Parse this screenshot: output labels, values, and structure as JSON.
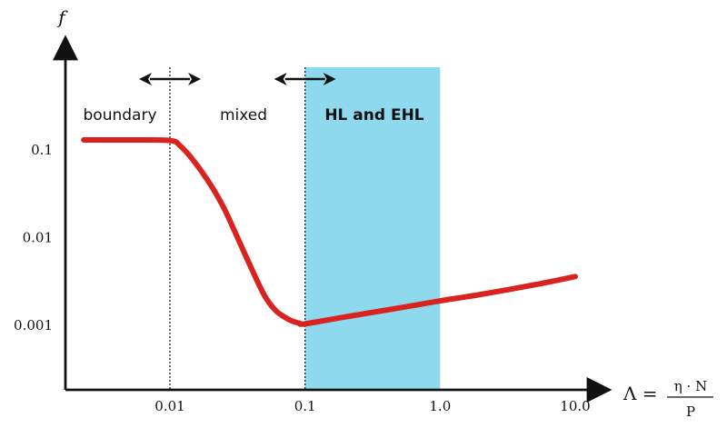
{
  "chart_data": {
    "type": "line",
    "title": "",
    "xlabel": "Λ =",
    "xlabel_fraction": {
      "numerator": "η · N",
      "denominator": "P"
    },
    "ylabel": "f",
    "x_scale": "log",
    "y_scale": "log",
    "xlim": [
      0.002,
      12
    ],
    "ylim": [
      0.0003,
      1.2
    ],
    "x_ticks": [
      {
        "value": 0.01,
        "label": "0.01"
      },
      {
        "value": 0.1,
        "label": "0.1"
      },
      {
        "value": 1.0,
        "label": "1.0"
      },
      {
        "value": 10.0,
        "label": "10.0"
      }
    ],
    "y_ticks": [
      {
        "value": 0.1,
        "label": "0.1"
      },
      {
        "value": 0.01,
        "label": "0.01"
      },
      {
        "value": 0.001,
        "label": "0.001"
      }
    ],
    "series": [
      {
        "color": "#d9231f",
        "x": [
          0.0023,
          0.005,
          0.01,
          0.012,
          0.015,
          0.02,
          0.025,
          0.03,
          0.04,
          0.05,
          0.06,
          0.07,
          0.08,
          0.09,
          0.1,
          0.2,
          0.5,
          1.0,
          2.0,
          5.0,
          10.0
        ],
        "y": [
          0.13,
          0.13,
          0.128,
          0.11,
          0.075,
          0.04,
          0.022,
          0.012,
          0.0045,
          0.0022,
          0.0015,
          0.00125,
          0.00112,
          0.00106,
          0.00104,
          0.00125,
          0.00158,
          0.0019,
          0.00225,
          0.0029,
          0.0036
        ]
      }
    ],
    "boundaries": [
      {
        "x": 0.01,
        "style": "dotted"
      },
      {
        "x": 0.1,
        "style": "dotted"
      }
    ],
    "shaded_region": {
      "x_range": [
        0.1,
        1.0
      ],
      "color": "#8fd9ee",
      "label": "HL and EHL",
      "label_color": "#1f2fd8"
    },
    "regions": [
      {
        "label": "boundary"
      },
      {
        "label": "mixed"
      }
    ],
    "arrows": [
      {
        "center_x": 0.01,
        "type": "double"
      },
      {
        "center_x": 0.1,
        "type": "double"
      }
    ],
    "grid": false,
    "legend": "none"
  }
}
